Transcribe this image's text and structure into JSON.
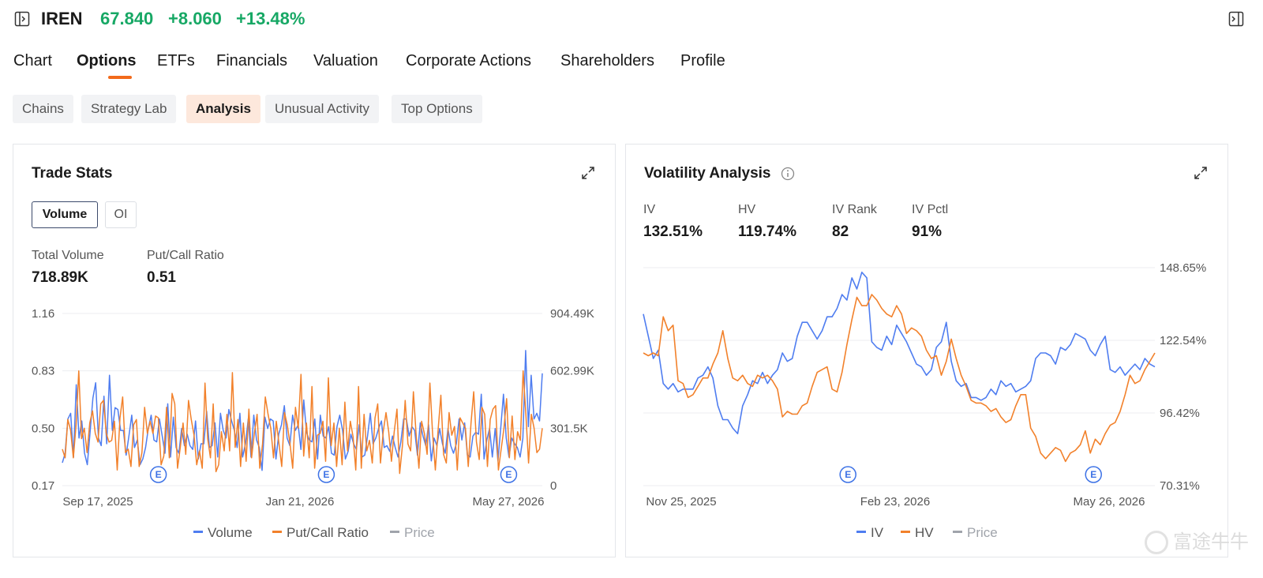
{
  "header": {
    "ticker": "IREN",
    "price": "67.840",
    "change": "+8.060",
    "change_pct": "+13.48%",
    "price_color": "#17a865"
  },
  "tabs": [
    "Chart",
    "Options",
    "ETFs",
    "Financials",
    "Valuation",
    "Corporate Actions",
    "Shareholders",
    "Profile"
  ],
  "active_tab": "Options",
  "subtabs": [
    "Chains",
    "Strategy Lab",
    "Analysis",
    "Unusual Activity",
    "Top Options"
  ],
  "active_subtab": "Analysis",
  "trade_stats": {
    "title": "Trade Stats",
    "toggle_on": "Volume",
    "toggle_off": "OI",
    "total_volume_label": "Total Volume",
    "total_volume": "718.89K",
    "pc_ratio_label": "Put/Call Ratio",
    "pc_ratio": "0.51",
    "legend": [
      "Volume",
      "Put/Call Ratio",
      "Price"
    ]
  },
  "volatility": {
    "title": "Volatility Analysis",
    "iv_label": "IV",
    "iv": "132.51%",
    "hv_label": "HV",
    "hv": "119.74%",
    "ivrank_label": "IV Rank",
    "ivrank": "82",
    "ivpctl_label": "IV Pctl",
    "ivpctl": "91%",
    "legend": [
      "IV",
      "HV",
      "Price"
    ]
  },
  "watermark": "富途牛牛",
  "colors": {
    "blue": "#4f7df0",
    "orange": "#f2812b",
    "grey": "#a0a4ab",
    "accent": "#f26a1b"
  },
  "chart_data": [
    {
      "type": "line",
      "title": "Trade Stats",
      "x_tick_labels": [
        "Sep 17, 2025",
        "Jan 21, 2026",
        "May 27, 2026"
      ],
      "y_left_ticks": [
        "1.16",
        "0.83",
        "0.50",
        "0.17"
      ],
      "y_right_ticks": [
        "904.49K",
        "602.99K",
        "301.5K",
        "0"
      ],
      "y_left_range": [
        0.17,
        1.16
      ],
      "y_right_range": [
        0,
        904490
      ],
      "earnings_markers": [
        "E",
        "E",
        "E"
      ],
      "earnings_positions": [
        0.2,
        0.55,
        0.93
      ],
      "series": [
        {
          "name": "Volume",
          "axis": "right",
          "values": [
            120000,
            170000,
            350000,
            380000,
            150000,
            530000,
            250000,
            340000,
            170000,
            110000,
            280000,
            460000,
            540000,
            250000,
            210000,
            470000,
            220000,
            580000,
            290000,
            410000,
            400000,
            290000,
            290000,
            160000,
            260000,
            370000,
            200000,
            240000,
            110000,
            140000,
            200000,
            300000,
            370000,
            240000,
            230000,
            350000,
            260000,
            170000,
            430000,
            150000,
            360000,
            200000,
            170000,
            300000,
            210000,
            270000,
            210000,
            190000,
            340000,
            140000,
            220000,
            220000,
            390000,
            200000,
            210000,
            330000,
            150000,
            380000,
            290000,
            250000,
            400000,
            340000,
            290000,
            200000,
            380000,
            150000,
            220000,
            350000,
            150000,
            370000,
            240000,
            200000,
            80000,
            360000,
            300000,
            350000,
            340000,
            140000,
            270000,
            320000,
            420000,
            250000,
            210000,
            370000,
            290000,
            320000,
            190000,
            450000,
            280000,
            240000,
            230000,
            350000,
            140000,
            370000,
            260000,
            250000,
            310000,
            170000,
            160000,
            310000,
            370000,
            290000,
            140000,
            180000,
            270000,
            220000,
            190000,
            320000,
            150000,
            160000,
            260000,
            380000,
            220000,
            250000,
            300000,
            340000,
            200000,
            210000,
            180000,
            260000,
            200000,
            150000,
            230000,
            350000,
            350000,
            260000,
            310000,
            290000,
            160000,
            330000,
            260000,
            210000,
            320000,
            130000,
            250000,
            210000,
            300000,
            220000,
            170000,
            300000,
            210000,
            170000,
            220000,
            350000,
            240000,
            330000,
            160000,
            150000,
            260000,
            280000,
            270000,
            480000,
            140000,
            240000,
            300000,
            150000,
            300000,
            130000,
            300000,
            480000,
            250000,
            150000,
            250000,
            220000,
            200000,
            150000,
            250000,
            710000,
            310000,
            580000,
            350000,
            380000,
            340000,
            590000
          ]
        },
        {
          "name": "Put/Call Ratio",
          "axis": "left",
          "values": [
            0.38,
            0.33,
            0.55,
            0.49,
            0.33,
            0.52,
            0.83,
            0.44,
            0.5,
            0.36,
            0.53,
            0.6,
            0.47,
            0.42,
            0.64,
            0.66,
            0.47,
            0.42,
            0.43,
            0.54,
            0.26,
            0.56,
            0.68,
            0.36,
            0.38,
            0.28,
            0.52,
            0.55,
            0.28,
            0.36,
            0.62,
            0.47,
            0.54,
            0.47,
            0.57,
            0.56,
            0.29,
            0.34,
            0.62,
            0.33,
            0.7,
            0.64,
            0.27,
            0.39,
            0.53,
            0.35,
            0.66,
            0.55,
            0.46,
            0.29,
            0.37,
            0.27,
            0.76,
            0.44,
            0.33,
            0.64,
            0.25,
            0.29,
            0.48,
            0.37,
            0.58,
            0.37,
            0.82,
            0.39,
            0.55,
            0.28,
            0.53,
            0.31,
            0.61,
            0.33,
            0.47,
            0.58,
            0.27,
            0.41,
            0.68,
            0.58,
            0.5,
            0.33,
            0.54,
            0.41,
            0.28,
            0.59,
            0.52,
            0.41,
            0.27,
            0.62,
            0.5,
            0.81,
            0.34,
            0.53,
            0.33,
            0.74,
            0.27,
            0.46,
            0.47,
            0.54,
            0.31,
            0.79,
            0.4,
            0.53,
            0.28,
            0.5,
            0.29,
            0.65,
            0.37,
            0.54,
            0.45,
            0.26,
            0.74,
            0.27,
            0.58,
            0.37,
            0.43,
            0.3,
            0.56,
            0.64,
            0.3,
            0.48,
            0.59,
            0.48,
            0.31,
            0.48,
            0.61,
            0.24,
            0.4,
            0.66,
            0.41,
            0.37,
            0.71,
            0.46,
            0.27,
            0.54,
            0.47,
            0.35,
            0.76,
            0.47,
            0.26,
            0.49,
            0.69,
            0.35,
            0.3,
            0.59,
            0.46,
            0.51,
            0.26,
            0.56,
            0.53,
            0.5,
            0.28,
            0.53,
            0.71,
            0.42,
            0.32,
            0.62,
            0.58,
            0.28,
            0.55,
            0.61,
            0.63,
            0.26,
            0.38,
            0.5,
            0.67,
            0.33,
            0.57,
            0.32,
            0.48,
            0.43,
            0.83,
            0.58,
            0.3,
            0.58,
            0.5,
            0.36,
            0.38,
            0.5
          ]
        }
      ]
    },
    {
      "type": "line",
      "title": "Volatility Analysis",
      "x_tick_labels": [
        "Nov 25, 2025",
        "Feb 23, 2026",
        "May 26, 2026"
      ],
      "y_ticks": [
        "148.65%",
        "122.54%",
        "96.42%",
        "70.31%"
      ],
      "y_range": [
        70.31,
        148.65
      ],
      "earnings_markers": [
        "E",
        "E"
      ],
      "earnings_positions": [
        0.4,
        0.88
      ],
      "series": [
        {
          "name": "IV",
          "values": [
            132,
            124,
            116,
            119,
            107,
            105,
            107,
            104,
            105,
            105,
            105,
            109,
            110,
            113,
            109,
            99,
            94,
            94,
            91,
            89,
            99,
            103,
            108,
            107,
            111,
            107,
            110,
            112,
            118,
            115,
            116,
            124,
            129,
            129,
            126,
            123,
            126,
            131,
            131,
            134,
            139,
            137,
            145,
            141,
            147,
            145,
            122,
            120,
            119,
            124,
            121,
            128,
            125,
            122,
            118,
            114,
            113,
            110,
            112,
            120,
            122,
            129,
            115,
            108,
            106,
            107,
            102,
            102,
            101,
            102,
            105,
            103,
            108,
            106,
            107,
            104,
            105,
            106,
            108,
            116,
            118,
            118,
            117,
            114,
            120,
            119,
            121,
            125,
            124,
            123,
            119,
            117,
            121,
            124,
            112,
            111,
            113,
            110,
            112,
            114,
            112,
            116,
            114,
            113
          ]
        },
        {
          "name": "HV",
          "values": [
            118,
            117,
            118,
            117,
            131,
            126,
            128,
            108,
            107,
            102,
            103,
            106,
            109,
            109,
            114,
            118,
            126,
            116,
            109,
            108,
            110,
            107,
            106,
            110,
            109,
            110,
            108,
            105,
            95,
            97,
            96,
            96,
            99,
            100,
            106,
            111,
            112,
            113,
            105,
            104,
            111,
            121,
            130,
            138,
            135,
            135,
            139,
            137,
            134,
            132,
            131,
            135,
            132,
            125,
            127,
            126,
            124,
            119,
            116,
            117,
            110,
            115,
            123,
            116,
            110,
            106,
            101,
            100,
            100,
            99,
            97,
            98,
            95,
            93,
            94,
            99,
            103,
            103,
            91,
            88,
            82,
            80,
            82,
            84,
            83,
            79,
            82,
            83,
            85,
            90,
            82,
            87,
            85,
            89,
            92,
            93,
            97,
            103,
            110,
            107,
            108,
            112,
            115,
            118
          ]
        }
      ]
    }
  ]
}
